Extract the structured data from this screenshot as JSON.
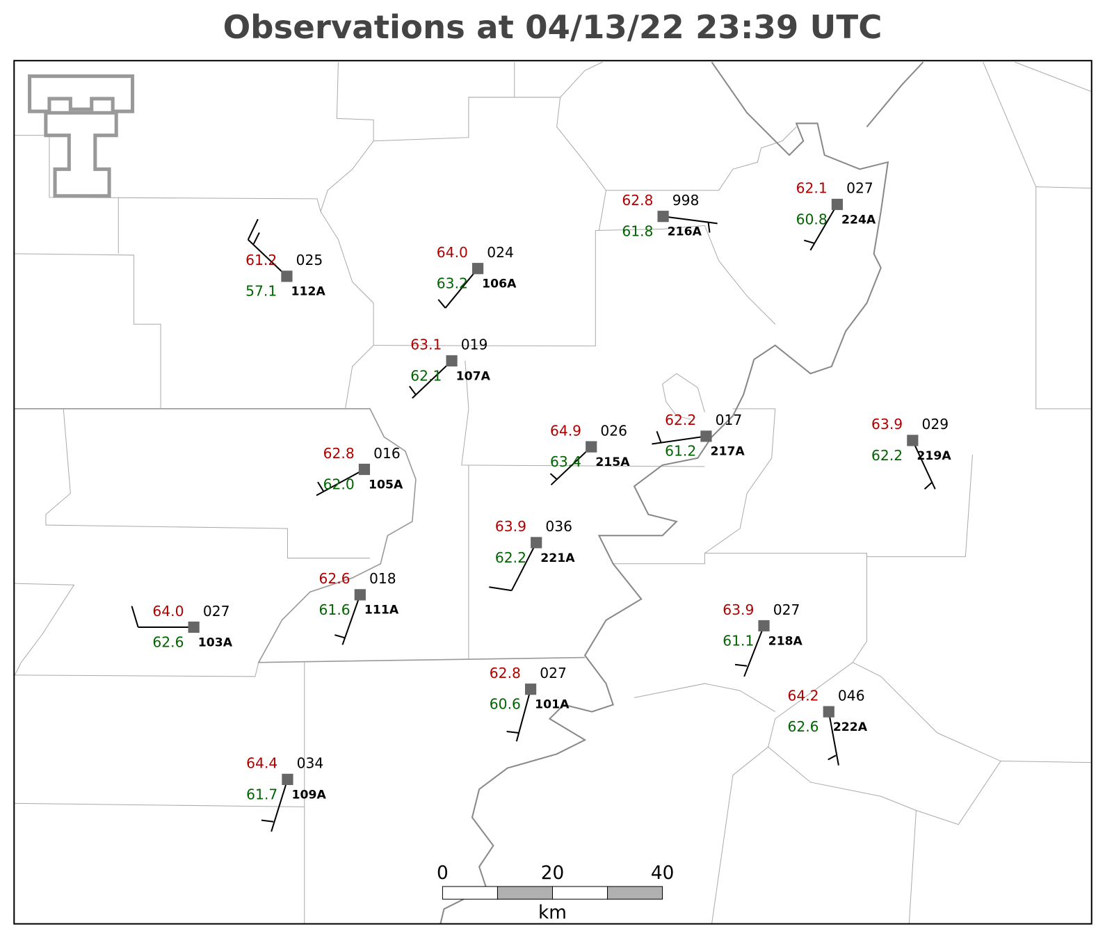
{
  "title": "Observations at 04/13/22 23:39 UTC",
  "stations": [
    {
      "id": "112A",
      "temperature": "61.2",
      "pressure": "025",
      "dewpoint": "57.1"
    },
    {
      "id": "106A",
      "temperature": "64.0",
      "pressure": "024",
      "dewpoint": "63.2"
    },
    {
      "id": "107A",
      "temperature": "63.1",
      "pressure": "019",
      "dewpoint": "62.1"
    },
    {
      "id": "216A",
      "temperature": "62.8",
      "pressure": "998",
      "dewpoint": "61.8"
    },
    {
      "id": "224A",
      "temperature": "62.1",
      "pressure": "027",
      "dewpoint": "60.8"
    },
    {
      "id": "215A",
      "temperature": "64.9",
      "pressure": "026",
      "dewpoint": "63.4"
    },
    {
      "id": "217A",
      "temperature": "62.2",
      "pressure": "017",
      "dewpoint": "61.2"
    },
    {
      "id": "219A",
      "temperature": "63.9",
      "pressure": "029",
      "dewpoint": "62.2"
    },
    {
      "id": "105A",
      "temperature": "62.8",
      "pressure": "016",
      "dewpoint": "62.0"
    },
    {
      "id": "221A",
      "temperature": "63.9",
      "pressure": "036",
      "dewpoint": "62.2"
    },
    {
      "id": "111A",
      "temperature": "62.6",
      "pressure": "018",
      "dewpoint": "61.6"
    },
    {
      "id": "103A",
      "temperature": "64.0",
      "pressure": "027",
      "dewpoint": "62.6"
    },
    {
      "id": "218A",
      "temperature": "63.9",
      "pressure": "027",
      "dewpoint": "61.1"
    },
    {
      "id": "101A",
      "temperature": "62.8",
      "pressure": "027",
      "dewpoint": "60.6"
    },
    {
      "id": "222A",
      "temperature": "64.2",
      "pressure": "046",
      "dewpoint": "62.6"
    },
    {
      "id": "109A",
      "temperature": "64.4",
      "pressure": "034",
      "dewpoint": "61.7"
    }
  ],
  "scale_bar": {
    "ticks": [
      "0",
      "20",
      "40"
    ],
    "unit": "km"
  }
}
